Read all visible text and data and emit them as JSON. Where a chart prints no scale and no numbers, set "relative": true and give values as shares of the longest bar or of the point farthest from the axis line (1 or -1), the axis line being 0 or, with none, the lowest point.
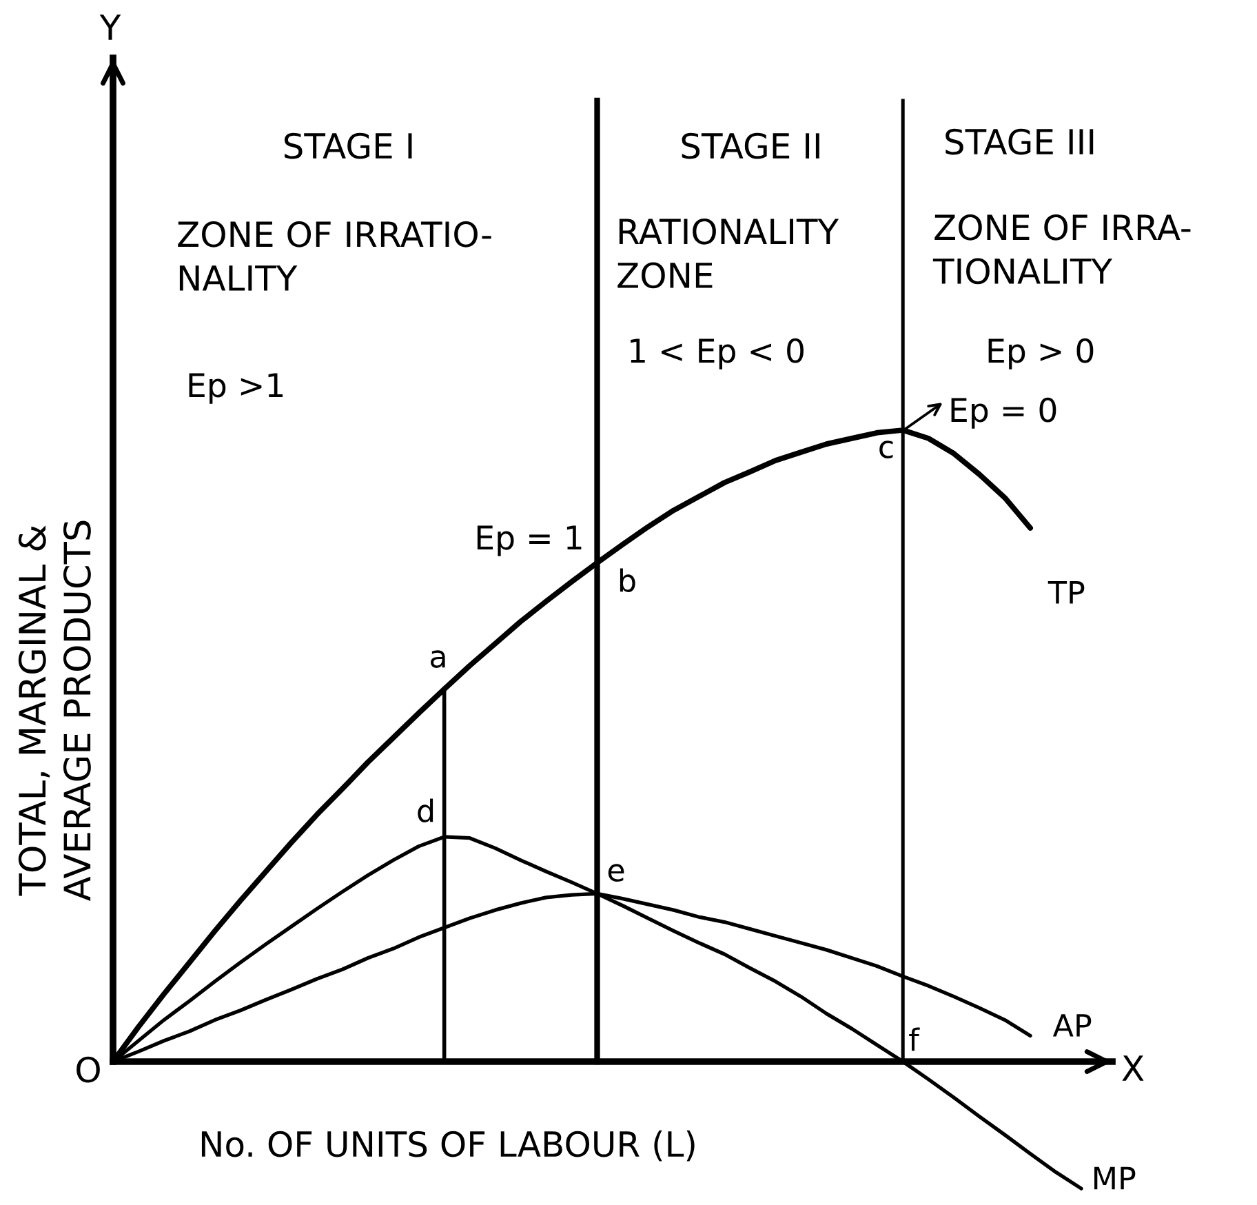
{
  "chart_data": {
    "type": "line",
    "relative": true,
    "xlabel": "No. OF UNITS OF LABOUR (L)",
    "ylabel": "TOTAL, MARGINAL &\nAVERAGE PRODUCTS",
    "categories": [
      null,
      null,
      null,
      null,
      null,
      null,
      null,
      null,
      null,
      null,
      null,
      null,
      null,
      null,
      null,
      null,
      null,
      null,
      null,
      null,
      null,
      null,
      null,
      null,
      null,
      null,
      null,
      null,
      null,
      null,
      null,
      null,
      null,
      null,
      null,
      null,
      null,
      null,
      null,
      null
    ],
    "series": [
      {
        "name": "TP",
        "color": "#000000",
        "values": [
          0,
          0.055,
          0.107,
          0.157,
          0.207,
          0.255,
          0.301,
          0.347,
          0.391,
          0.432,
          0.474,
          0.513,
          0.552,
          0.59,
          0.627,
          0.662,
          0.697,
          0.729,
          0.76,
          0.79,
          0.819,
          0.847,
          0.873,
          0.895,
          0.917,
          0.934,
          0.952,
          0.965,
          0.978,
          0.987,
          0.996,
          1,
          0.987,
          0.963,
          0.93,
          0.893,
          0.845,
          null,
          null,
          null
        ]
      },
      {
        "name": "MP",
        "color": "#000000",
        "values": [
          0,
          0.033,
          0.066,
          0.096,
          0.127,
          0.157,
          0.186,
          0.214,
          0.242,
          0.269,
          0.295,
          0.319,
          0.341,
          0.356,
          0.354,
          0.338,
          0.319,
          0.301,
          0.284,
          0.266,
          0.247,
          0.227,
          0.207,
          0.188,
          0.17,
          0.148,
          0.127,
          0.103,
          0.076,
          0.052,
          0.026,
          0,
          -0.028,
          -0.057,
          -0.087,
          -0.116,
          -0.146,
          -0.175,
          -0.201,
          null
        ]
      },
      {
        "name": "AP",
        "color": "#000000",
        "values": [
          0,
          0.016,
          0.033,
          0.048,
          0.066,
          0.081,
          0.098,
          0.114,
          0.131,
          0.146,
          0.164,
          0.179,
          0.197,
          0.212,
          0.227,
          0.24,
          0.251,
          0.26,
          0.264,
          0.266,
          0.258,
          0.249,
          0.24,
          0.229,
          0.221,
          0.21,
          0.199,
          0.188,
          0.177,
          0.164,
          0.151,
          0.135,
          0.12,
          0.103,
          0.085,
          0.066,
          0.041,
          null,
          null,
          null
        ]
      }
    ],
    "annotations": [
      "STAGE I",
      "ZONE OF IRRATIO-\nNALITY",
      "Ep >1",
      "STAGE II",
      "RATIONALITY\nZONE",
      "1 < Ep < 0",
      "STAGE III",
      "ZONE OF IRRA-\nTIONALITY",
      "Ep > 0",
      "Ep = 1",
      "Ep = 0",
      "a",
      "b",
      "c",
      "d",
      "e",
      "f",
      "O",
      "X",
      "Y"
    ]
  }
}
